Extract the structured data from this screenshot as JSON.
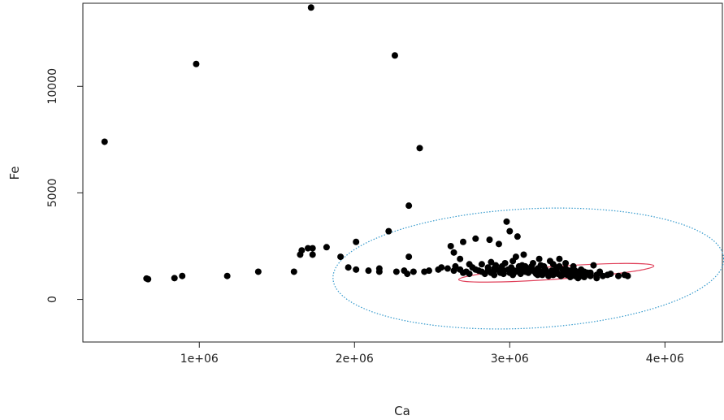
{
  "chart_data": {
    "type": "scatter",
    "title": "",
    "xlabel": "Ca",
    "ylabel": "Fe",
    "xlim": [
      250000,
      4370000
    ],
    "ylim": [
      -2000,
      13900
    ],
    "x_ticks": [
      {
        "value": 1000000,
        "label": "1e+06"
      },
      {
        "value": 2000000,
        "label": "2e+06"
      },
      {
        "value": 3000000,
        "label": "3e+06"
      },
      {
        "value": 4000000,
        "label": "4e+06"
      }
    ],
    "y_ticks": [
      {
        "value": 0,
        "label": "0"
      },
      {
        "value": 5000,
        "label": "5000"
      },
      {
        "value": 10000,
        "label": "10000"
      }
    ],
    "grid": false,
    "legend": "none",
    "colors": {
      "points": "#000000",
      "outer_ellipse": "#3399cc",
      "inner_ellipse": "#e0405a",
      "axis": "#222222"
    },
    "series": [
      {
        "points": [
          [
            390000,
            7400
          ],
          [
            660000,
            980
          ],
          [
            670000,
            950
          ],
          [
            840000,
            1000
          ],
          [
            890000,
            1100
          ],
          [
            980000,
            11050
          ],
          [
            1180000,
            1100
          ],
          [
            1380000,
            1300
          ],
          [
            1610000,
            1300
          ],
          [
            1650000,
            2100
          ],
          [
            1660000,
            2300
          ],
          [
            1700000,
            2400
          ],
          [
            1720000,
            13700
          ],
          [
            1730000,
            2400
          ],
          [
            1730000,
            2100
          ],
          [
            1820000,
            2450
          ],
          [
            1910000,
            2000
          ],
          [
            1960000,
            1500
          ],
          [
            2010000,
            1400
          ],
          [
            2010000,
            2700
          ],
          [
            2090000,
            1350
          ],
          [
            2160000,
            1300
          ],
          [
            2160000,
            1450
          ],
          [
            2220000,
            3200
          ],
          [
            2260000,
            11450
          ],
          [
            2270000,
            1300
          ],
          [
            2320000,
            1350
          ],
          [
            2340000,
            1200
          ],
          [
            2350000,
            4400
          ],
          [
            2350000,
            2000
          ],
          [
            2380000,
            1300
          ],
          [
            2420000,
            7100
          ],
          [
            2450000,
            1300
          ],
          [
            2480000,
            1350
          ],
          [
            2540000,
            1400
          ],
          [
            2620000,
            2500
          ],
          [
            2640000,
            2200
          ],
          [
            2650000,
            1550
          ],
          [
            2680000,
            1900
          ],
          [
            2700000,
            2700
          ],
          [
            2720000,
            1300
          ],
          [
            2740000,
            1200
          ],
          [
            2760000,
            1500
          ],
          [
            2780000,
            2850
          ],
          [
            2800000,
            1350
          ],
          [
            2820000,
            1650
          ],
          [
            2840000,
            1200
          ],
          [
            2860000,
            1500
          ],
          [
            2870000,
            2800
          ],
          [
            2880000,
            1750
          ],
          [
            2890000,
            1300
          ],
          [
            2900000,
            1450
          ],
          [
            2910000,
            1600
          ],
          [
            2930000,
            2600
          ],
          [
            2940000,
            1250
          ],
          [
            2950000,
            1550
          ],
          [
            2960000,
            1350
          ],
          [
            2970000,
            1700
          ],
          [
            2980000,
            3650
          ],
          [
            2990000,
            1400
          ],
          [
            3000000,
            3200
          ],
          [
            3000000,
            1250
          ],
          [
            3010000,
            1500
          ],
          [
            3020000,
            1800
          ],
          [
            3030000,
            1350
          ],
          [
            3040000,
            2000
          ],
          [
            3050000,
            2950
          ],
          [
            3060000,
            1400
          ],
          [
            3070000,
            1200
          ],
          [
            3080000,
            1600
          ],
          [
            3090000,
            2100
          ],
          [
            3100000,
            1300
          ],
          [
            3110000,
            1450
          ],
          [
            3120000,
            1250
          ],
          [
            3140000,
            1550
          ],
          [
            3150000,
            1350
          ],
          [
            3170000,
            1200
          ],
          [
            3180000,
            1450
          ],
          [
            3190000,
            1900
          ],
          [
            3200000,
            1300
          ],
          [
            3210000,
            1150
          ],
          [
            3230000,
            1400
          ],
          [
            3240000,
            1250
          ],
          [
            3260000,
            1800
          ],
          [
            3270000,
            1350
          ],
          [
            3280000,
            1150
          ],
          [
            3290000,
            1300
          ],
          [
            3300000,
            1500
          ],
          [
            3310000,
            1200
          ],
          [
            3320000,
            1900
          ],
          [
            3330000,
            1100
          ],
          [
            3340000,
            1400
          ],
          [
            3350000,
            1250
          ],
          [
            3360000,
            1700
          ],
          [
            3370000,
            1150
          ],
          [
            3380000,
            1350
          ],
          [
            3390000,
            1050
          ],
          [
            3400000,
            1200
          ],
          [
            3410000,
            1550
          ],
          [
            3420000,
            1100
          ],
          [
            3430000,
            1300
          ],
          [
            3440000,
            1000
          ],
          [
            3450000,
            1150
          ],
          [
            3460000,
            1400
          ],
          [
            3470000,
            1200
          ],
          [
            3480000,
            1050
          ],
          [
            3500000,
            1250
          ],
          [
            3520000,
            1100
          ],
          [
            3540000,
            1600
          ],
          [
            3560000,
            1150
          ],
          [
            3580000,
            1300
          ],
          [
            3600000,
            1100
          ],
          [
            3630000,
            1150
          ],
          [
            3650000,
            1200
          ],
          [
            3700000,
            1100
          ],
          [
            3740000,
            1150
          ],
          [
            3760000,
            1100
          ],
          [
            2780000,
            1400
          ],
          [
            2820000,
            1300
          ],
          [
            2860000,
            1350
          ],
          [
            2880000,
            1250
          ],
          [
            2920000,
            1400
          ],
          [
            2960000,
            1200
          ],
          [
            3000000,
            1400
          ],
          [
            3040000,
            1300
          ],
          [
            3060000,
            1550
          ],
          [
            3090000,
            1350
          ],
          [
            3130000,
            1400
          ],
          [
            3160000,
            1300
          ],
          [
            3220000,
            1550
          ],
          [
            3250000,
            1100
          ],
          [
            3300000,
            1350
          ],
          [
            3340000,
            1150
          ],
          [
            3360000,
            1450
          ],
          [
            3420000,
            1350
          ],
          [
            3440000,
            1250
          ],
          [
            3480000,
            1300
          ],
          [
            3520000,
            1250
          ],
          [
            3560000,
            1000
          ],
          [
            2700000,
            1250
          ],
          [
            2680000,
            1400
          ],
          [
            2740000,
            1650
          ],
          [
            2600000,
            1450
          ],
          [
            2560000,
            1500
          ],
          [
            2640000,
            1350
          ],
          [
            2900000,
            1150
          ],
          [
            2950000,
            1300
          ],
          [
            3020000,
            1150
          ],
          [
            3100000,
            1550
          ],
          [
            3180000,
            1150
          ],
          [
            3260000,
            1250
          ],
          [
            3320000,
            1550
          ],
          [
            3400000,
            1350
          ],
          [
            3460000,
            1100
          ],
          [
            3280000,
            1650
          ],
          [
            3200000,
            1600
          ],
          [
            3150000,
            1700
          ]
        ]
      }
    ],
    "ellipses": [
      {
        "name": "outer",
        "cx": 3120000,
        "cy": 1450,
        "rx": 1260000,
        "ry": 2800,
        "angle": -3,
        "style": "dotted",
        "color": "#3399cc"
      },
      {
        "name": "inner",
        "cx": 3300000,
        "cy": 1250,
        "rx": 630000,
        "ry": 300,
        "angle": -4,
        "style": "solid",
        "color": "#e0405a"
      }
    ]
  }
}
